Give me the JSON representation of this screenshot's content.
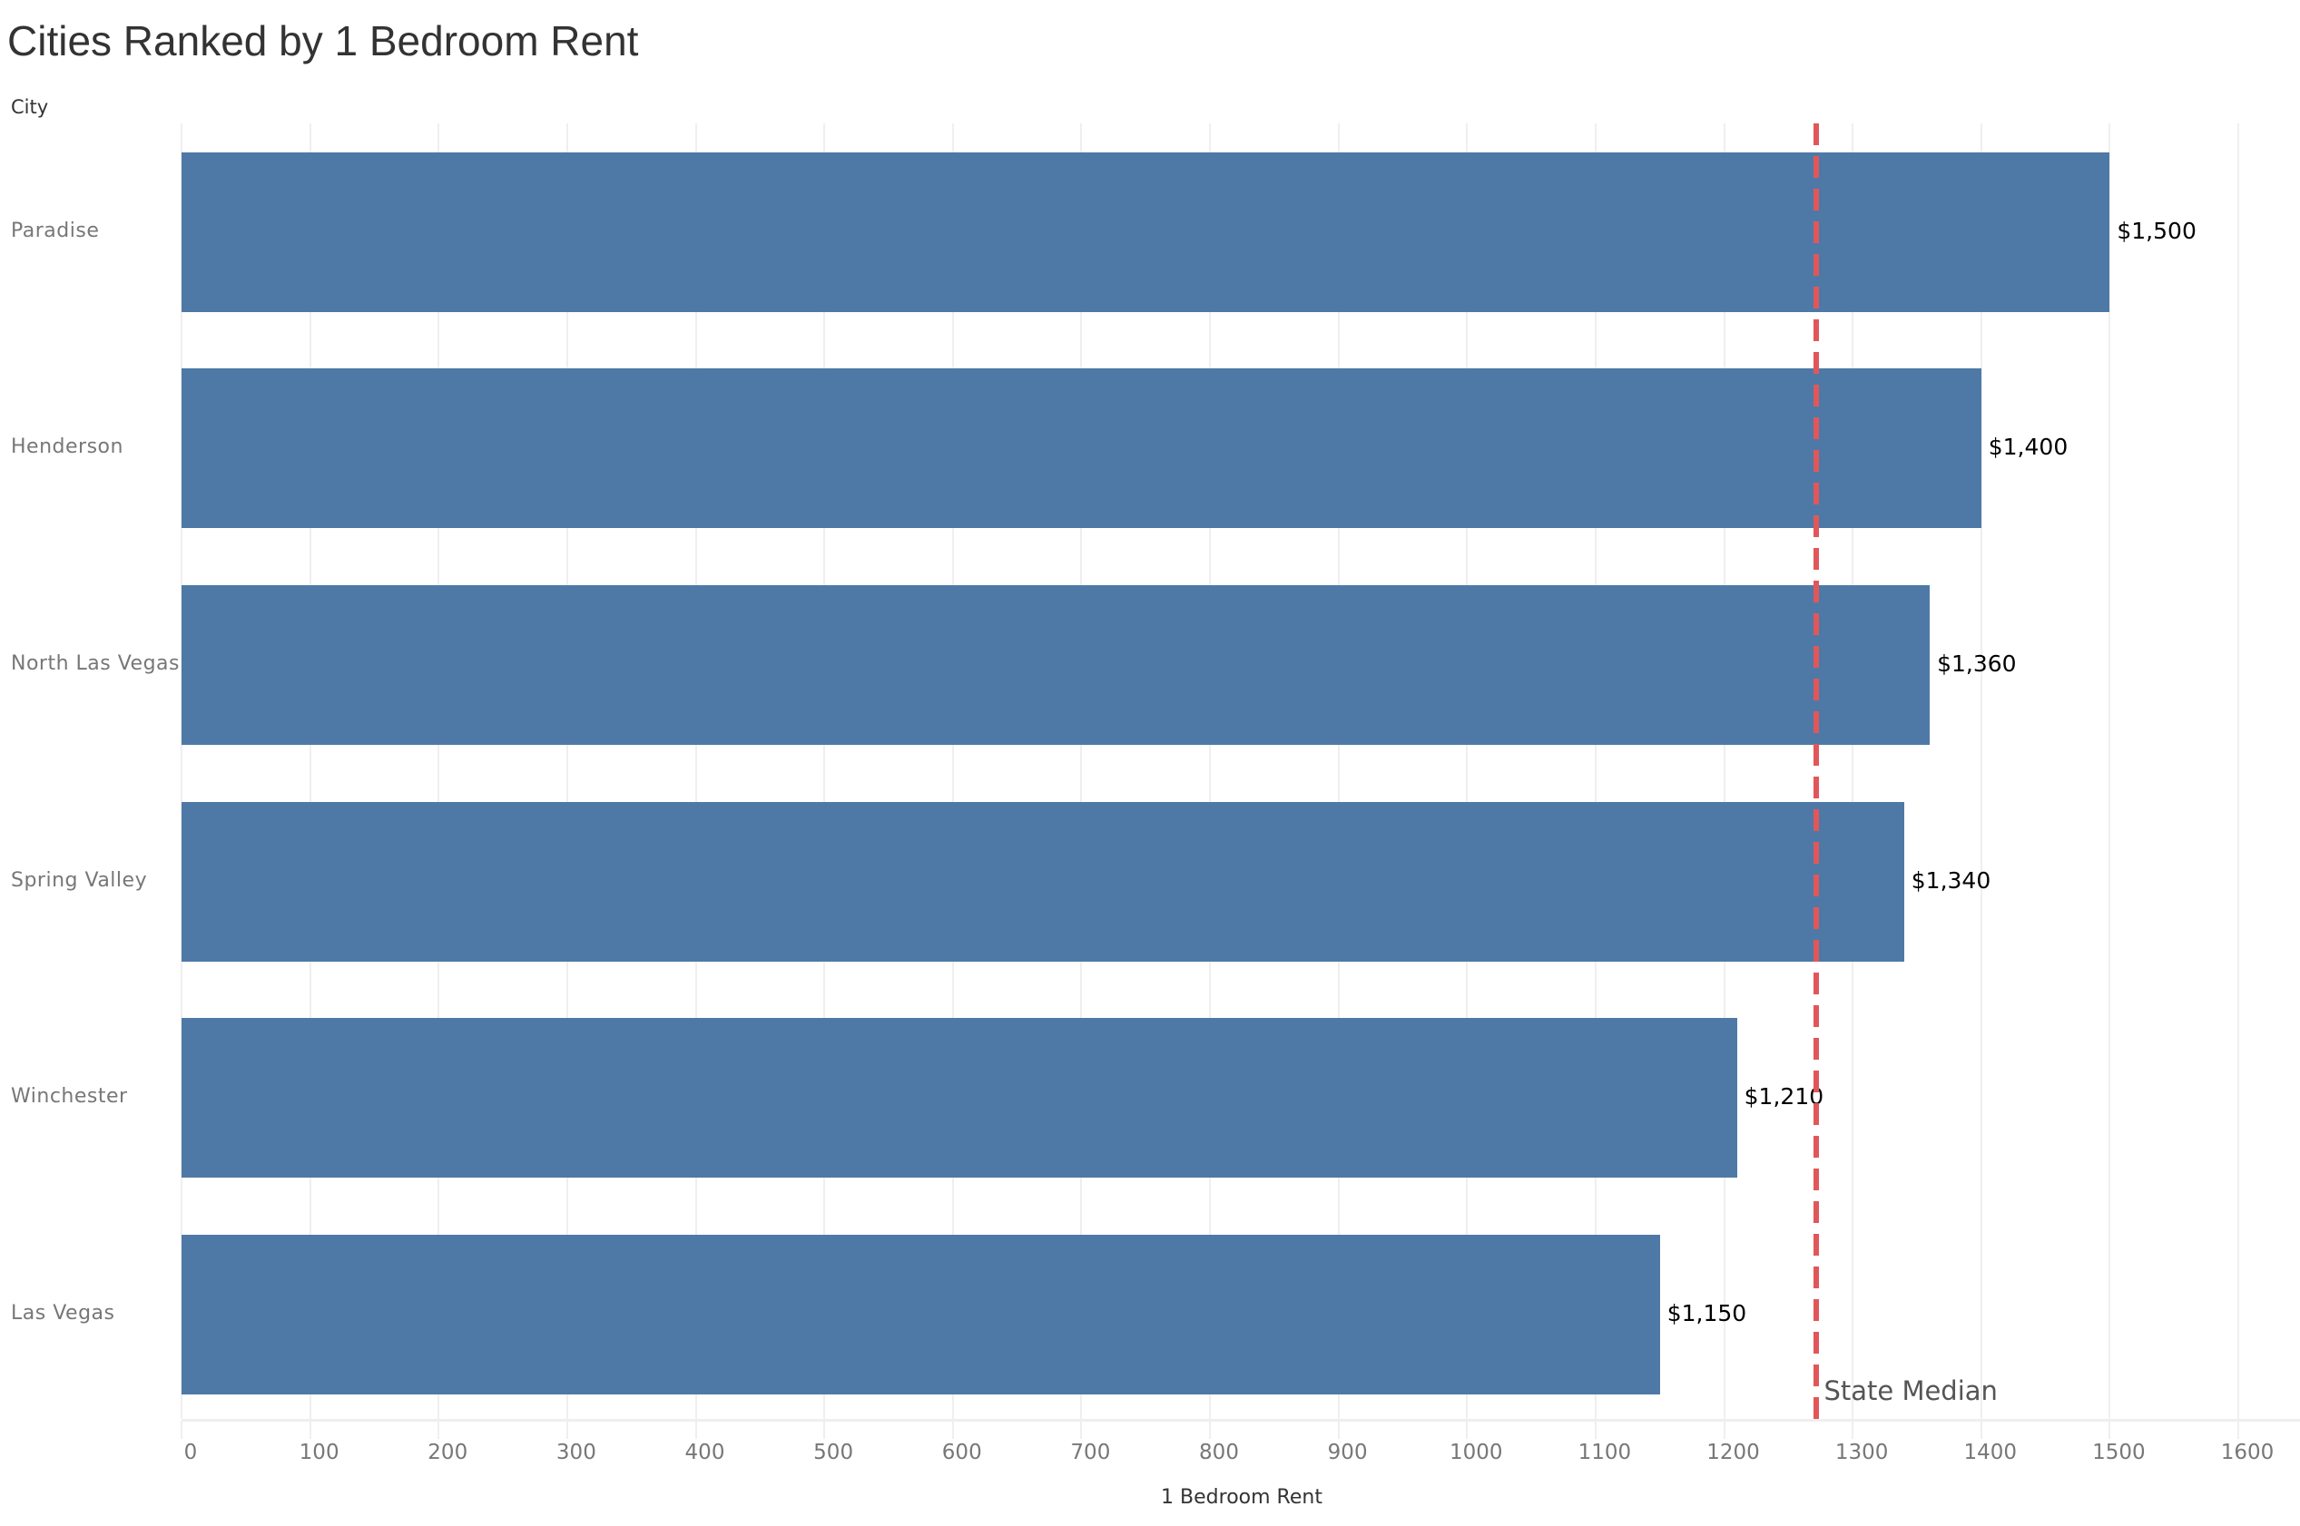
{
  "header": {
    "title": "Cities Ranked by 1 Bedroom Rent",
    "y_axis_caption": "City",
    "x_axis_caption": "1 Bedroom Rent"
  },
  "colors": {
    "bar": "#4e79a7",
    "median_line": "#e15759",
    "gridline": "#efefef"
  },
  "reference_line": {
    "label": "State Median",
    "value": 1272
  },
  "bars": [
    {
      "city": "Paradise",
      "value": 1500,
      "label": "$1,500"
    },
    {
      "city": "Henderson",
      "value": 1400,
      "label": "$1,400"
    },
    {
      "city": "North Las Vegas",
      "value": 1360,
      "label": "$1,360"
    },
    {
      "city": "Spring Valley",
      "value": 1340,
      "label": "$1,340"
    },
    {
      "city": "Winchester",
      "value": 1210,
      "label": "$1,210"
    },
    {
      "city": "Las Vegas",
      "value": 1150,
      "label": "$1,150"
    }
  ],
  "x_ticks": [
    "0",
    "100",
    "200",
    "300",
    "400",
    "500",
    "600",
    "700",
    "800",
    "900",
    "1000",
    "1100",
    "1200",
    "1300",
    "1400",
    "1500",
    "1600"
  ],
  "chart_data": {
    "type": "bar",
    "orientation": "horizontal",
    "title": "Cities Ranked by 1 Bedroom Rent",
    "xlabel": "1 Bedroom Rent",
    "ylabel": "City",
    "categories": [
      "Paradise",
      "Henderson",
      "North Las Vegas",
      "Spring Valley",
      "Winchester",
      "Las Vegas"
    ],
    "values": [
      1500,
      1400,
      1360,
      1340,
      1210,
      1150
    ],
    "data_labels": [
      "$1,500",
      "$1,400",
      "$1,360",
      "$1,340",
      "$1,210",
      "$1,150"
    ],
    "xlim": [
      0,
      1600
    ],
    "x_ticks": [
      0,
      100,
      200,
      300,
      400,
      500,
      600,
      700,
      800,
      900,
      1000,
      1100,
      1200,
      1300,
      1400,
      1500,
      1600
    ],
    "grid": true,
    "legend": null,
    "annotations": [
      {
        "type": "reference_line",
        "label": "State Median",
        "value": 1272,
        "style": "dashed",
        "color": "#e15759"
      }
    ]
  }
}
